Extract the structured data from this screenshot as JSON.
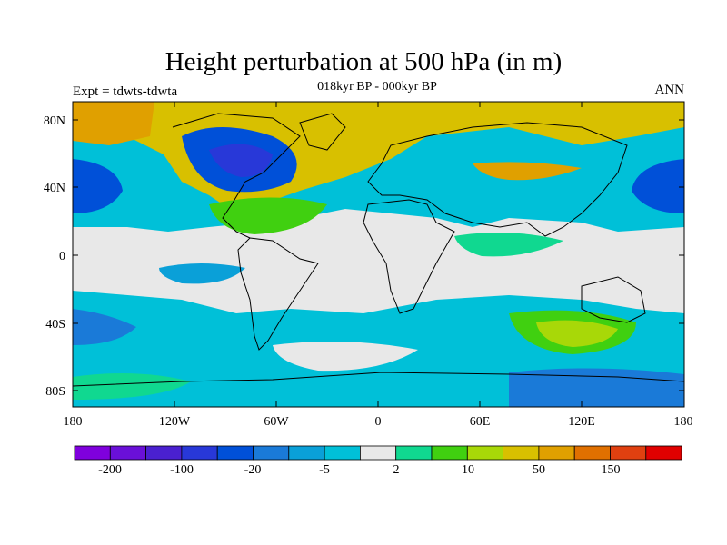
{
  "header": {
    "title": "Height perturbation at 500 hPa (in m)",
    "subtitle": "018kyr BP - 000kyr BP",
    "expt": "Expt = tdwts-tdwta",
    "season": "ANN"
  },
  "axes": {
    "lat_labels": [
      "80N",
      "40N",
      "0",
      "40S",
      "80S"
    ],
    "lon_labels": [
      "180",
      "120W",
      "60W",
      "0",
      "60E",
      "120E",
      "180"
    ]
  },
  "colorbar": {
    "colors": [
      "#7f00dd",
      "#6a10d8",
      "#4a20d0",
      "#2838d8",
      "#0050d8",
      "#1a7ad8",
      "#0aa0d8",
      "#00c0d8",
      "#e8e8e8",
      "#10d890",
      "#40d010",
      "#a8d808",
      "#d8c000",
      "#e0a000",
      "#e07000",
      "#e04010",
      "#e00000"
    ],
    "labels": [
      "-200",
      "-100",
      "-20",
      "-5",
      "2",
      "10",
      "50",
      "150"
    ]
  }
}
